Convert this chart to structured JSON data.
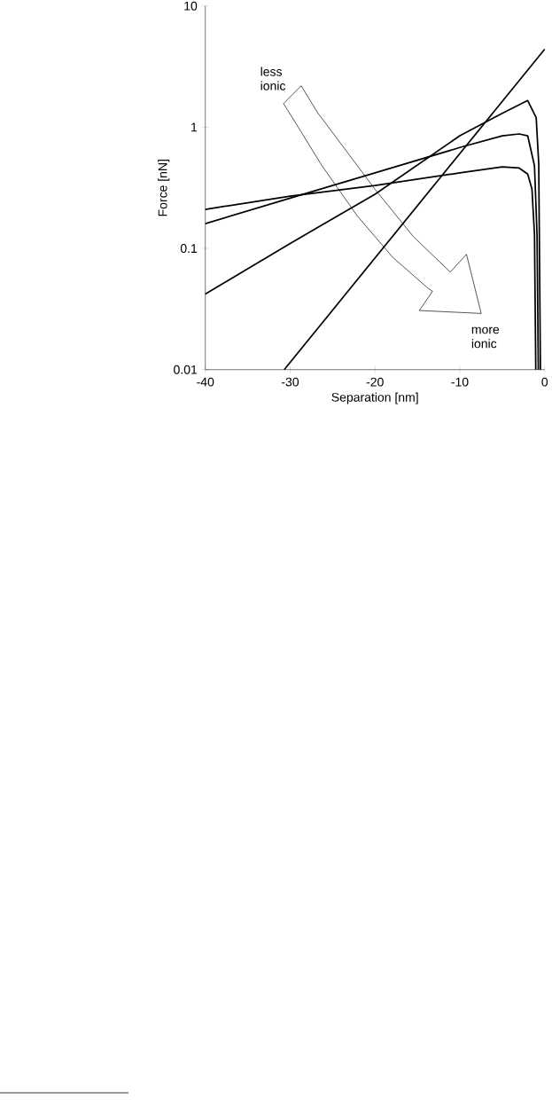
{
  "chart_data": {
    "type": "line",
    "xlabel": "Separation [nm]",
    "ylabel": "Force [nN]",
    "log": "y",
    "xlim": [
      -40,
      0
    ],
    "ylim": [
      0.01,
      10
    ],
    "xticks": [
      -40,
      -30,
      -20,
      -10,
      0
    ],
    "yticks": [
      0.01,
      0.1,
      1,
      10
    ],
    "annotations": [
      "less ionic",
      "more ionic"
    ],
    "series": [
      {
        "color": "#000000",
        "x": [
          -40,
          -30,
          -20,
          -10,
          -5,
          -3,
          -2,
          -1.5,
          -1.2,
          -1.05
        ],
        "values": [
          0.21,
          0.27,
          0.33,
          0.42,
          0.47,
          0.46,
          0.41,
          0.31,
          0.13,
          0.01
        ]
      },
      {
        "color": "#000000",
        "x": [
          -40,
          -30,
          -20,
          -10,
          -5,
          -3,
          -2,
          -1.2,
          -0.9,
          -0.75
        ],
        "values": [
          0.16,
          0.26,
          0.42,
          0.68,
          0.85,
          0.88,
          0.85,
          0.48,
          0.13,
          0.01
        ]
      },
      {
        "color": "#000000",
        "x": [
          -40,
          -30,
          -20,
          -10,
          -5,
          -2,
          -1,
          -0.7,
          -0.5
        ],
        "values": [
          0.042,
          0.11,
          0.28,
          0.85,
          1.3,
          1.66,
          1.2,
          0.5,
          0.01
        ]
      },
      {
        "color": "#000000",
        "x": [
          -30.7,
          0
        ],
        "values": [
          0.01,
          4.4
        ]
      }
    ]
  }
}
